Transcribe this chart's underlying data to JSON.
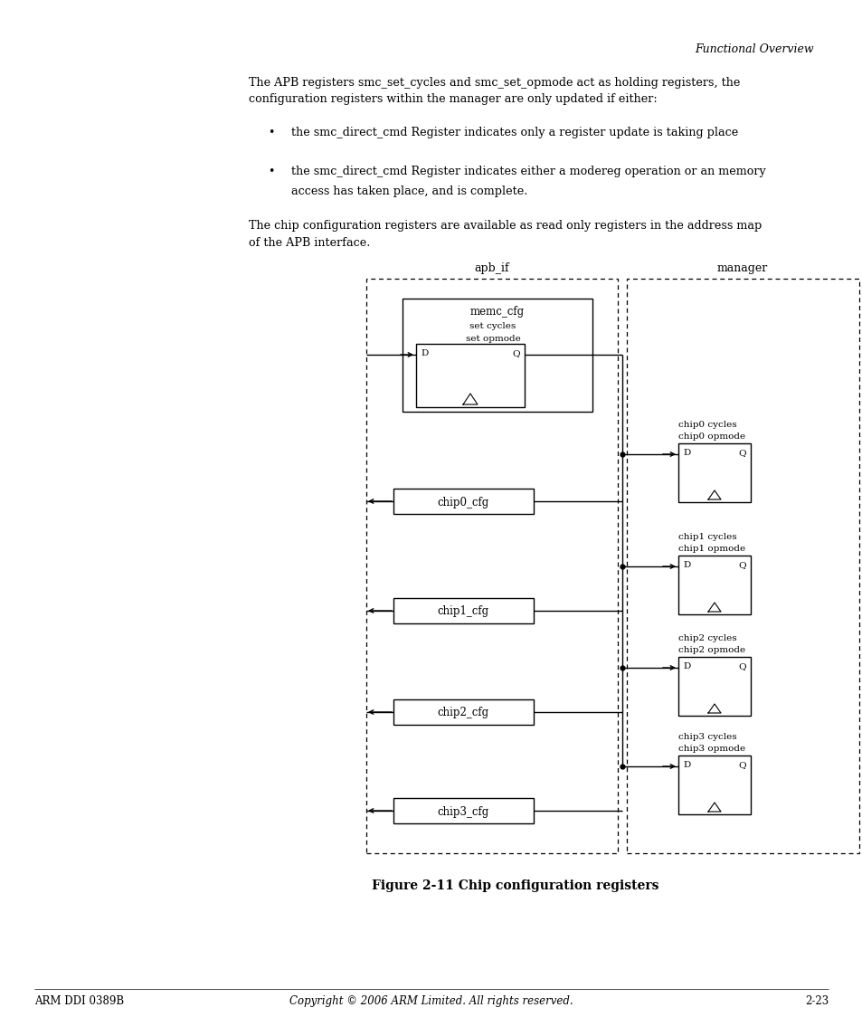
{
  "page_bg": "#ffffff",
  "header_text": "Functional Overview",
  "bullet1": "the smc_direct_cmd Register indicates only a register update is taking place",
  "bullet2_line1": "the smc_direct_cmd Register indicates either a modereg operation or an memory",
  "bullet2_line2": "access has taken place, and is complete.",
  "figure_caption": "Figure 2-11 Chip configuration registers",
  "footer_left": "ARM DDI 0389B",
  "footer_center": "Copyright © 2006 ARM Limited. All rights reserved.",
  "footer_right": "2-23"
}
